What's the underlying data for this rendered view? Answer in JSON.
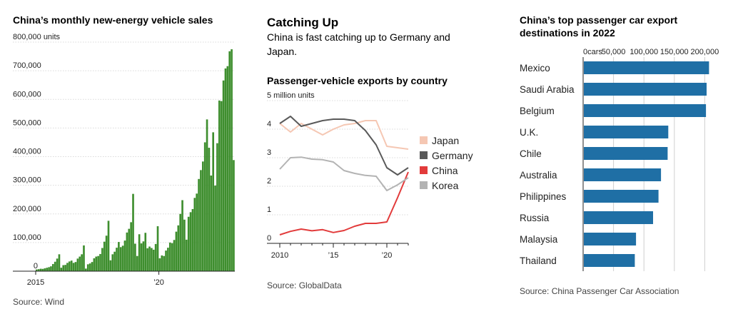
{
  "chart_data": [
    {
      "type": "bar",
      "title": "China’s monthly new-energy vehicle sales",
      "ylabel": "units",
      "ylim": [
        0,
        800000
      ],
      "yticks": [
        0,
        100000,
        200000,
        300000,
        400000,
        500000,
        600000,
        700000,
        800000
      ],
      "ytick_labels": [
        "0",
        "100,000",
        "200,000",
        "300,000",
        "400,000",
        "500,000",
        "600,000",
        "700,000",
        "800,000"
      ],
      "ytick_top_unit": "units",
      "x_start": "2015-01",
      "xtick_labels": [
        {
          "label": "2015",
          "month_index": 0
        },
        {
          "label": "’20",
          "month_index": 60
        }
      ],
      "values": [
        6000,
        7000,
        8500,
        8000,
        10000,
        12000,
        14000,
        17000,
        25000,
        33000,
        44000,
        59000,
        12000,
        21000,
        22000,
        29000,
        34000,
        37000,
        29000,
        32000,
        44000,
        51000,
        59000,
        90000,
        9000,
        24000,
        27000,
        32000,
        45000,
        51000,
        53000,
        60000,
        81000,
        103000,
        124000,
        176000,
        38000,
        59000,
        68000,
        82000,
        102000,
        84000,
        89000,
        107000,
        135000,
        148000,
        171000,
        270000,
        96000,
        53000,
        129000,
        97000,
        104000,
        134000,
        80000,
        86000,
        81000,
        75000,
        95000,
        157000,
        45000,
        55000,
        53000,
        72000,
        82000,
        100000,
        98000,
        109000,
        138000,
        160000,
        200000,
        248000,
        180000,
        110000,
        190000,
        206000,
        217000,
        256000,
        271000,
        322000,
        353000,
        383000,
        450000,
        530000,
        431000,
        334000,
        485000,
        299000,
        447000,
        596000,
        594000,
        666000,
        708000,
        716000,
        768000,
        775000,
        388000
      ],
      "source": "Source: Wind"
    },
    {
      "type": "line",
      "kicker": "Catching Up",
      "subtitle": "China is fast catching up to Germany and Japan.",
      "title": "Passenger-vehicle exports by country",
      "ylabel": "million units",
      "ylim": [
        0,
        5
      ],
      "yticks": [
        0,
        1,
        2,
        3,
        4,
        5
      ],
      "ytick_labels": [
        "0",
        "1",
        "2",
        "3",
        "4",
        "5"
      ],
      "ytick_top_unit": "million units",
      "xlim": [
        2010,
        2022
      ],
      "xtick_labels": [
        {
          "label": "2010",
          "x": 2010
        },
        {
          "label": "’15",
          "x": 2015
        },
        {
          "label": "’20",
          "x": 2020
        }
      ],
      "series": [
        {
          "name": "Japan",
          "color": "#f5c7b3",
          "points": [
            [
              2010,
              4.2
            ],
            [
              2011,
              3.9
            ],
            [
              2012,
              4.2
            ],
            [
              2013,
              4.0
            ],
            [
              2014,
              3.8
            ],
            [
              2015,
              4.0
            ],
            [
              2016,
              4.15
            ],
            [
              2017,
              4.2
            ],
            [
              2018,
              4.3
            ],
            [
              2019,
              4.3
            ],
            [
              2020,
              3.4
            ],
            [
              2021,
              3.35
            ],
            [
              2022,
              3.3
            ]
          ]
        },
        {
          "name": "Germany",
          "color": "#595959",
          "points": [
            [
              2010,
              4.2
            ],
            [
              2011,
              4.45
            ],
            [
              2012,
              4.1
            ],
            [
              2013,
              4.2
            ],
            [
              2014,
              4.3
            ],
            [
              2015,
              4.35
            ],
            [
              2016,
              4.35
            ],
            [
              2017,
              4.3
            ],
            [
              2018,
              3.95
            ],
            [
              2019,
              3.45
            ],
            [
              2020,
              2.65
            ],
            [
              2021,
              2.4
            ],
            [
              2022,
              2.65
            ]
          ]
        },
        {
          "name": "China",
          "color": "#e23b3b",
          "points": [
            [
              2010,
              0.3
            ],
            [
              2011,
              0.42
            ],
            [
              2012,
              0.5
            ],
            [
              2013,
              0.44
            ],
            [
              2014,
              0.48
            ],
            [
              2015,
              0.38
            ],
            [
              2016,
              0.45
            ],
            [
              2017,
              0.6
            ],
            [
              2018,
              0.7
            ],
            [
              2019,
              0.7
            ],
            [
              2020,
              0.75
            ],
            [
              2021,
              1.6
            ],
            [
              2022,
              2.5
            ]
          ]
        },
        {
          "name": "Korea",
          "color": "#b3b3b3",
          "points": [
            [
              2010,
              2.6
            ],
            [
              2011,
              3.0
            ],
            [
              2012,
              3.02
            ],
            [
              2013,
              2.95
            ],
            [
              2014,
              2.93
            ],
            [
              2015,
              2.85
            ],
            [
              2016,
              2.55
            ],
            [
              2017,
              2.45
            ],
            [
              2018,
              2.38
            ],
            [
              2019,
              2.35
            ],
            [
              2020,
              1.85
            ],
            [
              2021,
              2.05
            ],
            [
              2022,
              2.3
            ]
          ]
        }
      ],
      "source": "Source: GlobalData"
    },
    {
      "type": "bar",
      "orientation": "horizontal",
      "title": "China’s top passenger car export destinations in 2022",
      "unit": "cars",
      "xlim": [
        0,
        250000
      ],
      "xticks": [
        0,
        50000,
        100000,
        150000,
        200000
      ],
      "xtick_labels": [
        "0",
        "50,000",
        "100,000",
        "150,000",
        "200,000"
      ],
      "xtick_first_unit": "cars",
      "categories": [
        "Mexico",
        "Saudi Arabia",
        "Belgium",
        "U.K.",
        "Chile",
        "Australia",
        "Philippines",
        "Russia",
        "Malaysia",
        "Thailand"
      ],
      "values": [
        207000,
        203000,
        202000,
        140000,
        139000,
        128000,
        124000,
        115000,
        87000,
        85000
      ],
      "color": "#1f6fa5",
      "source": "Source: China Passenger Car Association"
    }
  ]
}
